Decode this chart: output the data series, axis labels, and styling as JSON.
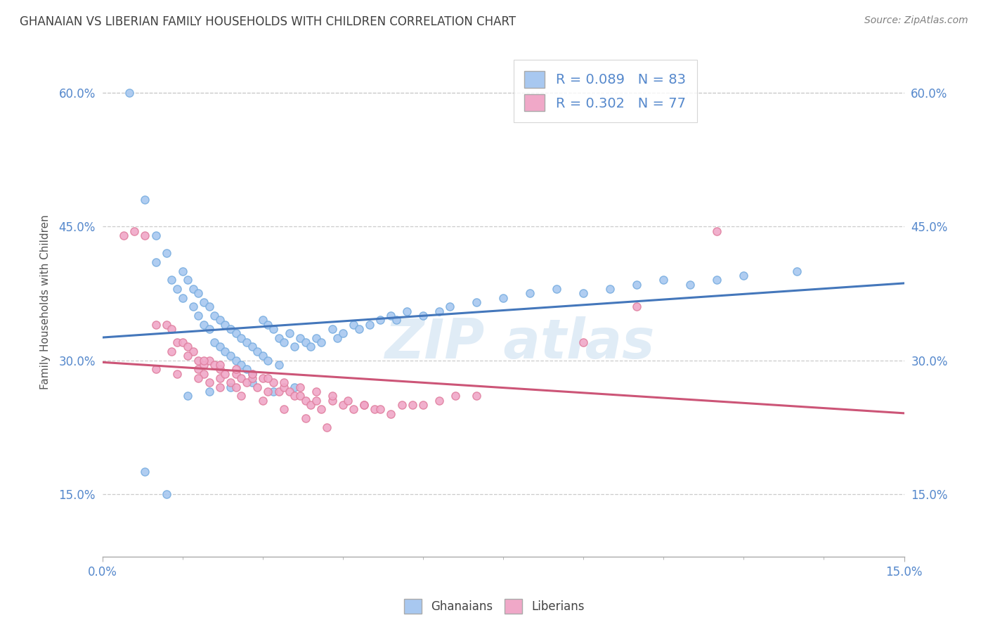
{
  "title": "GHANAIAN VS LIBERIAN FAMILY HOUSEHOLDS WITH CHILDREN CORRELATION CHART",
  "source": "Source: ZipAtlas.com",
  "ylabel": "Family Households with Children",
  "xlim": [
    0.0,
    0.15
  ],
  "ylim": [
    0.08,
    0.65
  ],
  "ytick_labels": [
    "15.0%",
    "30.0%",
    "45.0%",
    "60.0%"
  ],
  "ytick_values": [
    0.15,
    0.3,
    0.45,
    0.6
  ],
  "ghanaian_color": "#a8c8f0",
  "liberian_color": "#f0a8c8",
  "ghanaian_edge_color": "#7aaee0",
  "liberian_edge_color": "#e080a0",
  "ghanaian_line_color": "#4477bb",
  "liberian_line_color": "#cc5577",
  "R_ghanaian": 0.089,
  "N_ghanaian": 83,
  "R_liberian": 0.302,
  "N_liberian": 77,
  "title_color": "#404040",
  "source_color": "#808080",
  "label_color": "#5588cc",
  "grid_color": "#cccccc",
  "ghanaian_x": [
    0.005,
    0.008,
    0.01,
    0.01,
    0.012,
    0.013,
    0.014,
    0.015,
    0.015,
    0.016,
    0.017,
    0.017,
    0.018,
    0.018,
    0.019,
    0.019,
    0.02,
    0.02,
    0.021,
    0.021,
    0.022,
    0.022,
    0.023,
    0.023,
    0.024,
    0.024,
    0.025,
    0.025,
    0.026,
    0.026,
    0.027,
    0.027,
    0.028,
    0.028,
    0.029,
    0.03,
    0.03,
    0.031,
    0.031,
    0.032,
    0.033,
    0.033,
    0.034,
    0.035,
    0.036,
    0.037,
    0.038,
    0.039,
    0.04,
    0.041,
    0.043,
    0.044,
    0.045,
    0.047,
    0.048,
    0.05,
    0.052,
    0.054,
    0.055,
    0.057,
    0.06,
    0.063,
    0.065,
    0.07,
    0.075,
    0.08,
    0.085,
    0.09,
    0.095,
    0.1,
    0.105,
    0.11,
    0.115,
    0.12,
    0.13,
    0.008,
    0.012,
    0.016,
    0.02,
    0.024,
    0.028,
    0.032,
    0.036
  ],
  "ghanaian_y": [
    0.6,
    0.48,
    0.44,
    0.41,
    0.42,
    0.39,
    0.38,
    0.4,
    0.37,
    0.39,
    0.38,
    0.36,
    0.375,
    0.35,
    0.365,
    0.34,
    0.36,
    0.335,
    0.35,
    0.32,
    0.345,
    0.315,
    0.34,
    0.31,
    0.335,
    0.305,
    0.33,
    0.3,
    0.325,
    0.295,
    0.32,
    0.29,
    0.315,
    0.285,
    0.31,
    0.345,
    0.305,
    0.34,
    0.3,
    0.335,
    0.325,
    0.295,
    0.32,
    0.33,
    0.315,
    0.325,
    0.32,
    0.315,
    0.325,
    0.32,
    0.335,
    0.325,
    0.33,
    0.34,
    0.335,
    0.34,
    0.345,
    0.35,
    0.345,
    0.355,
    0.35,
    0.355,
    0.36,
    0.365,
    0.37,
    0.375,
    0.38,
    0.375,
    0.38,
    0.385,
    0.39,
    0.385,
    0.39,
    0.395,
    0.4,
    0.175,
    0.15,
    0.26,
    0.265,
    0.27,
    0.275,
    0.265,
    0.27
  ],
  "liberian_x": [
    0.004,
    0.006,
    0.008,
    0.01,
    0.012,
    0.013,
    0.014,
    0.015,
    0.016,
    0.017,
    0.018,
    0.018,
    0.019,
    0.019,
    0.02,
    0.02,
    0.021,
    0.022,
    0.022,
    0.023,
    0.024,
    0.025,
    0.025,
    0.026,
    0.027,
    0.028,
    0.029,
    0.03,
    0.031,
    0.032,
    0.033,
    0.034,
    0.035,
    0.036,
    0.037,
    0.038,
    0.039,
    0.04,
    0.041,
    0.043,
    0.045,
    0.047,
    0.049,
    0.051,
    0.054,
    0.056,
    0.058,
    0.06,
    0.063,
    0.066,
    0.07,
    0.013,
    0.016,
    0.019,
    0.022,
    0.025,
    0.028,
    0.031,
    0.034,
    0.037,
    0.04,
    0.043,
    0.046,
    0.049,
    0.052,
    0.01,
    0.014,
    0.018,
    0.022,
    0.026,
    0.03,
    0.034,
    0.038,
    0.042,
    0.115,
    0.09,
    0.1
  ],
  "liberian_y": [
    0.44,
    0.445,
    0.44,
    0.34,
    0.34,
    0.335,
    0.32,
    0.32,
    0.315,
    0.31,
    0.3,
    0.29,
    0.295,
    0.285,
    0.3,
    0.275,
    0.295,
    0.29,
    0.28,
    0.285,
    0.275,
    0.285,
    0.27,
    0.28,
    0.275,
    0.28,
    0.27,
    0.28,
    0.265,
    0.275,
    0.265,
    0.27,
    0.265,
    0.26,
    0.26,
    0.255,
    0.25,
    0.255,
    0.245,
    0.255,
    0.25,
    0.245,
    0.25,
    0.245,
    0.24,
    0.25,
    0.25,
    0.25,
    0.255,
    0.26,
    0.26,
    0.31,
    0.305,
    0.3,
    0.295,
    0.29,
    0.285,
    0.28,
    0.275,
    0.27,
    0.265,
    0.26,
    0.255,
    0.25,
    0.245,
    0.29,
    0.285,
    0.28,
    0.27,
    0.26,
    0.255,
    0.245,
    0.235,
    0.225,
    0.445,
    0.32,
    0.36
  ]
}
